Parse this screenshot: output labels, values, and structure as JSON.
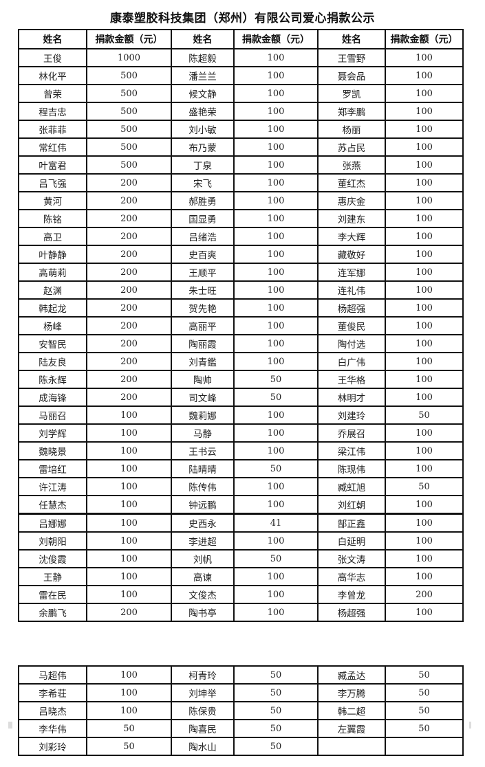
{
  "title": "康泰塑胶科技集团（郑州）有限公司爱心捐款公示",
  "headers": [
    "姓名",
    "捐款金额（元）",
    "姓名",
    "捐款金额（元）",
    "姓名",
    "捐款金额（元）"
  ],
  "rows_block1": [
    [
      "王俊",
      "1000",
      "陈超毅",
      "100",
      "王雪野",
      "100"
    ],
    [
      "林化平",
      "500",
      "潘兰兰",
      "100",
      "聂会品",
      "100"
    ],
    [
      "曾荣",
      "500",
      "候文静",
      "100",
      "罗凯",
      "100"
    ],
    [
      "程吉忠",
      "500",
      "盛艳荣",
      "100",
      "郑李鹏",
      "100"
    ],
    [
      "张菲菲",
      "500",
      "刘小敏",
      "100",
      "杨丽",
      "100"
    ],
    [
      "常红伟",
      "500",
      "布乃蒙",
      "100",
      "苏占民",
      "100"
    ],
    [
      "叶富君",
      "500",
      "丁泉",
      "100",
      "张燕",
      "100"
    ],
    [
      "吕飞强",
      "200",
      "宋飞",
      "100",
      "董红杰",
      "100"
    ],
    [
      "黄河",
      "200",
      "郝胜勇",
      "100",
      "惠庆金",
      "100"
    ],
    [
      "陈铭",
      "200",
      "国显勇",
      "100",
      "刘建东",
      "100"
    ],
    [
      "高卫",
      "200",
      "吕绪浩",
      "100",
      "李大辉",
      "100"
    ],
    [
      "叶静静",
      "200",
      "史百爽",
      "100",
      "藏敬好",
      "100"
    ],
    [
      "高萌莉",
      "200",
      "王顺平",
      "100",
      "连军娜",
      "100"
    ],
    [
      "赵渊",
      "200",
      "朱士旺",
      "100",
      "连礼伟",
      "100"
    ],
    [
      "韩起龙",
      "200",
      "贺先艳",
      "100",
      "杨超强",
      "100"
    ],
    [
      "杨峰",
      "200",
      "高丽平",
      "100",
      "董俊民",
      "100"
    ],
    [
      "安智民",
      "200",
      "陶丽霞",
      "100",
      "陶付选",
      "100"
    ],
    [
      "陆友良",
      "200",
      "刘青鑑",
      "100",
      "白广伟",
      "100"
    ],
    [
      "陈永辉",
      "200",
      "陶帅",
      "50",
      "王华格",
      "100"
    ],
    [
      "成海锋",
      "200",
      "司文峰",
      "50",
      "林明才",
      "100"
    ],
    [
      "马丽召",
      "100",
      "魏莉娜",
      "100",
      "刘建玲",
      "50"
    ],
    [
      "刘学辉",
      "100",
      "马静",
      "100",
      "乔展召",
      "100"
    ],
    [
      "魏晓景",
      "100",
      "王书云",
      "100",
      "梁江伟",
      "100"
    ],
    [
      "雷培红",
      "100",
      "陆晴晴",
      "50",
      "陈现伟",
      "100"
    ],
    [
      "许江涛",
      "100",
      "陈传伟",
      "100",
      "臧虹旭",
      "50"
    ],
    [
      "任慧杰",
      "100",
      "钟远鹏",
      "100",
      "刘红朝",
      "100"
    ],
    [
      "吕娜娜",
      "100",
      "史西永",
      "41",
      "郜正鑫",
      "100"
    ],
    [
      "刘朝阳",
      "100",
      "李进超",
      "100",
      "白延明",
      "100"
    ],
    [
      "沈俊霞",
      "100",
      "刘帆",
      "50",
      "张文涛",
      "100"
    ],
    [
      "王静",
      "100",
      "高谏",
      "100",
      "高华志",
      "100"
    ],
    [
      "雷在民",
      "100",
      "文俊杰",
      "100",
      "李曾龙",
      "200"
    ],
    [
      "余鹏飞",
      "200",
      "陶书亭",
      "100",
      "杨超强",
      "100"
    ]
  ],
  "rows_block2": [
    [
      "马超伟",
      "100",
      "柯青玲",
      "50",
      "臧孟达",
      "50"
    ],
    [
      "李希荘",
      "100",
      "刘坤举",
      "50",
      "李万腾",
      "50"
    ],
    [
      "吕晓杰",
      "100",
      "陈保贵",
      "50",
      "韩二超",
      "50"
    ],
    [
      "李华伟",
      "50",
      "陶喜民",
      "50",
      "左翼霞",
      "50"
    ],
    [
      "刘彩玲",
      "50",
      "陶水山",
      "50",
      "",
      ""
    ]
  ]
}
